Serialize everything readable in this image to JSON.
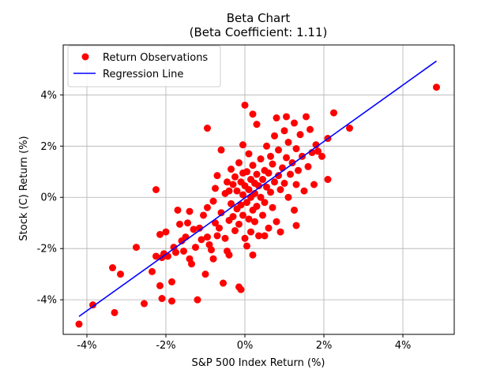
{
  "chart_data": {
    "type": "scatter",
    "title_line1": "Beta Chart",
    "title_line2": "(Beta Coefficient: 1.11)",
    "xlabel": "S&P 500 Index Return (%)",
    "ylabel": "Stock (C) Return (%)",
    "xlim": [
      -4.6,
      5.3
    ],
    "ylim": [
      -5.35,
      5.95
    ],
    "x_ticks": [
      -4,
      -2,
      0,
      2,
      4
    ],
    "y_ticks": [
      -4,
      -2,
      0,
      2,
      4
    ],
    "x_tick_labels": [
      "-4%",
      "-2%",
      "0%",
      "2%",
      "4%"
    ],
    "y_tick_labels": [
      "-4%",
      "-2%",
      "0%",
      "2%",
      "4%"
    ],
    "grid": true,
    "legend": {
      "placement": "top-left",
      "entries": [
        "Return Observations",
        "Regression Line"
      ]
    },
    "series": [
      {
        "name": "Return Observations",
        "color": "#ff0000",
        "marker": "circle",
        "points": [
          [
            -4.2,
            -4.95
          ],
          [
            -3.85,
            -4.2
          ],
          [
            -3.3,
            -4.5
          ],
          [
            -3.35,
            -2.75
          ],
          [
            -3.15,
            -3.0
          ],
          [
            -2.75,
            -1.95
          ],
          [
            -2.55,
            -4.15
          ],
          [
            -2.35,
            -2.9
          ],
          [
            -2.25,
            -2.3
          ],
          [
            -2.25,
            0.3
          ],
          [
            -2.15,
            -1.45
          ],
          [
            -2.15,
            -3.45
          ],
          [
            -2.1,
            -2.35
          ],
          [
            -2.05,
            -2.2
          ],
          [
            -2.1,
            -3.95
          ],
          [
            -2.0,
            -1.35
          ],
          [
            -1.95,
            -2.3
          ],
          [
            -1.85,
            -3.3
          ],
          [
            -1.85,
            -4.05
          ],
          [
            -1.8,
            -1.95
          ],
          [
            -1.75,
            -2.15
          ],
          [
            -1.7,
            -0.5
          ],
          [
            -1.65,
            -1.05
          ],
          [
            -1.6,
            -1.7
          ],
          [
            -1.55,
            -2.1
          ],
          [
            -1.5,
            -1.55
          ],
          [
            -1.45,
            -1.0
          ],
          [
            -1.4,
            -2.4
          ],
          [
            -1.4,
            -0.55
          ],
          [
            -1.35,
            -2.6
          ],
          [
            -1.3,
            -1.25
          ],
          [
            -1.25,
            -1.95
          ],
          [
            -1.2,
            -4.0
          ],
          [
            -1.15,
            -1.2
          ],
          [
            -1.1,
            -1.65
          ],
          [
            -1.05,
            -0.7
          ],
          [
            -1.0,
            -3.0
          ],
          [
            -0.95,
            2.7
          ],
          [
            -0.95,
            -0.4
          ],
          [
            -0.9,
            -1.85
          ],
          [
            -0.85,
            -2.05
          ],
          [
            -0.8,
            -2.4
          ],
          [
            -0.8,
            -0.15
          ],
          [
            -0.75,
            -1.0
          ],
          [
            -0.75,
            0.35
          ],
          [
            -0.7,
            -1.5
          ],
          [
            -0.7,
            0.85
          ],
          [
            -0.65,
            -1.2
          ],
          [
            -0.6,
            -0.6
          ],
          [
            -0.6,
            1.85
          ],
          [
            -0.55,
            -3.35
          ],
          [
            -0.5,
            -1.6
          ],
          [
            -0.5,
            0.15
          ],
          [
            -0.45,
            -2.1
          ],
          [
            -0.45,
            0.6
          ],
          [
            -0.4,
            -0.9
          ],
          [
            -0.4,
            -2.25
          ],
          [
            -0.35,
            1.1
          ],
          [
            -0.35,
            -0.25
          ],
          [
            -0.3,
            -0.75
          ],
          [
            -0.3,
            0.5
          ],
          [
            -0.25,
            -1.3
          ],
          [
            -0.25,
            0.8
          ],
          [
            -0.2,
            -0.45
          ],
          [
            -0.2,
            0.25
          ],
          [
            -0.15,
            -1.05
          ],
          [
            -0.15,
            1.35
          ],
          [
            -0.15,
            -3.5
          ],
          [
            -0.1,
            -0.3
          ],
          [
            -0.1,
            0.6
          ],
          [
            -0.1,
            -3.6
          ],
          [
            -0.05,
            -0.7
          ],
          [
            -0.05,
            2.05
          ],
          [
            -0.05,
            0.1
          ],
          [
            0.0,
            -1.6
          ],
          [
            0.0,
            0.45
          ],
          [
            0.0,
            3.6
          ],
          [
            0.05,
            -0.2
          ],
          [
            0.05,
            1.0
          ],
          [
            0.05,
            -1.9
          ],
          [
            0.1,
            0.3
          ],
          [
            0.1,
            -0.85
          ],
          [
            0.1,
            1.7
          ],
          [
            0.15,
            0.0
          ],
          [
            0.15,
            -1.35
          ],
          [
            0.15,
            0.7
          ],
          [
            0.2,
            3.25
          ],
          [
            0.2,
            -0.5
          ],
          [
            0.2,
            1.25
          ],
          [
            0.2,
            -2.25
          ],
          [
            0.25,
            0.15
          ],
          [
            0.25,
            -0.95
          ],
          [
            0.3,
            0.9
          ],
          [
            0.3,
            2.85
          ],
          [
            0.3,
            -0.35
          ],
          [
            0.35,
            0.45
          ],
          [
            0.35,
            -1.5
          ],
          [
            0.4,
            1.5
          ],
          [
            0.4,
            0.0
          ],
          [
            0.45,
            -0.7
          ],
          [
            0.45,
            0.7
          ],
          [
            0.5,
            1.05
          ],
          [
            0.5,
            -0.2
          ],
          [
            0.55,
            2.0
          ],
          [
            0.55,
            0.4
          ],
          [
            0.6,
            -1.2
          ],
          [
            0.6,
            0.95
          ],
          [
            0.65,
            1.6
          ],
          [
            0.65,
            0.2
          ],
          [
            0.7,
            -0.4
          ],
          [
            0.7,
            1.3
          ],
          [
            0.75,
            2.4
          ],
          [
            0.75,
            0.6
          ],
          [
            0.8,
            -0.95
          ],
          [
            0.8,
            3.1
          ],
          [
            0.85,
            0.85
          ],
          [
            0.85,
            1.85
          ],
          [
            0.9,
            0.3
          ],
          [
            0.9,
            -1.35
          ],
          [
            0.95,
            1.15
          ],
          [
            1.0,
            2.6
          ],
          [
            1.0,
            0.55
          ],
          [
            1.05,
            3.15
          ],
          [
            1.05,
            1.55
          ],
          [
            1.1,
            0.0
          ],
          [
            1.1,
            2.15
          ],
          [
            1.15,
            0.9
          ],
          [
            1.2,
            1.35
          ],
          [
            1.25,
            2.9
          ],
          [
            1.25,
            -0.5
          ],
          [
            1.3,
            0.5
          ],
          [
            1.3,
            1.9
          ],
          [
            1.35,
            1.05
          ],
          [
            1.4,
            2.45
          ],
          [
            1.45,
            1.6
          ],
          [
            1.5,
            0.25
          ],
          [
            1.55,
            3.15
          ],
          [
            1.6,
            1.2
          ],
          [
            1.65,
            2.65
          ],
          [
            1.7,
            1.75
          ],
          [
            1.75,
            0.5
          ],
          [
            1.8,
            2.05
          ],
          [
            1.85,
            1.8
          ],
          [
            1.95,
            1.6
          ],
          [
            2.1,
            0.7
          ],
          [
            2.1,
            2.3
          ],
          [
            2.25,
            3.3
          ],
          [
            2.65,
            2.7
          ],
          [
            4.85,
            4.3
          ],
          [
            0.5,
            -1.5
          ],
          [
            1.3,
            -1.1
          ],
          [
            -0.95,
            -1.55
          ],
          [
            -0.4,
            0.25
          ],
          [
            0.25,
            0.55
          ],
          [
            -0.05,
            0.95
          ]
        ]
      },
      {
        "name": "Regression Line",
        "color": "#0000ff",
        "type": "line",
        "points": [
          [
            -4.2,
            -4.65
          ],
          [
            4.85,
            5.32
          ]
        ]
      }
    ]
  }
}
